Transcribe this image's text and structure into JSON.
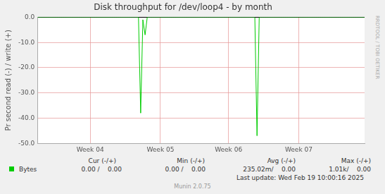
{
  "chart_data": {
    "type": "line",
    "title": "Disk throughput for /dev/loop4 - by month",
    "y_label": "Pr second read (-) / write (+)",
    "categories": [
      null,
      null,
      null,
      null,
      null,
      null,
      null,
      null,
      null,
      null,
      null,
      null,
      null,
      null,
      null,
      null,
      null,
      null,
      null,
      null,
      null,
      null,
      null,
      null,
      "Week 04",
      null,
      null,
      null,
      null,
      null,
      null,
      null,
      null,
      null,
      null,
      null,
      null,
      null,
      null,
      null,
      null,
      null,
      null,
      null,
      null,
      null,
      null,
      null,
      null,
      null,
      null,
      null,
      null,
      null,
      null,
      null,
      "Week 05",
      null,
      null,
      null,
      null,
      null,
      null,
      null,
      null,
      null,
      null,
      null,
      null,
      null,
      null,
      null,
      null,
      null,
      null,
      null,
      null,
      null,
      null,
      null,
      null,
      null,
      null,
      null,
      null,
      null,
      null,
      "Week 06",
      null,
      null,
      null,
      null,
      null,
      null,
      null,
      null,
      null,
      null,
      null,
      null,
      null,
      null,
      null,
      null,
      null,
      null,
      null,
      null,
      null,
      null,
      null,
      null,
      null,
      null,
      null,
      null,
      null,
      null,
      null,
      "Week 07",
      null,
      null,
      null,
      null,
      null,
      null,
      null,
      null,
      null,
      null,
      null,
      null,
      null,
      null,
      null,
      null,
      null,
      null,
      null,
      null,
      null,
      null,
      null,
      null,
      null,
      null,
      null,
      null,
      null,
      null
    ],
    "series": [
      {
        "name": "Bytes",
        "color": "#00cc00",
        "values": [
          0,
          0,
          0,
          0,
          0,
          0,
          0,
          0,
          0,
          0,
          0,
          0,
          0,
          0,
          0,
          0,
          0,
          0,
          0,
          0,
          0,
          0,
          0,
          0,
          0,
          0,
          0,
          0,
          0,
          0,
          0,
          0,
          0,
          0,
          0,
          0,
          0,
          0,
          0,
          0,
          0,
          0,
          0,
          0,
          0,
          0,
          0,
          -38,
          -1,
          -7,
          0,
          0,
          0,
          0,
          0,
          0,
          0,
          0,
          0,
          0,
          0,
          0,
          0,
          0,
          0,
          0,
          0,
          0,
          0,
          0,
          0,
          0,
          0,
          0,
          0,
          0,
          0,
          0,
          0,
          0,
          0,
          0,
          0,
          0,
          0,
          0,
          0,
          0,
          0,
          0,
          0,
          0,
          0,
          0,
          0,
          0,
          0,
          0,
          0,
          0,
          -47,
          0,
          0,
          0,
          0,
          0,
          0,
          0,
          0,
          0,
          0,
          0,
          0,
          0,
          0,
          0,
          0,
          0,
          0,
          0,
          0,
          0,
          0,
          0,
          0,
          0,
          0,
          0,
          0,
          0,
          0,
          0,
          0,
          0,
          0,
          0,
          0,
          0,
          0,
          0,
          0,
          0,
          0,
          0,
          0,
          0,
          0,
          0,
          0,
          0
        ]
      }
    ],
    "ylim": [
      -50,
      0
    ],
    "yticks": [
      {
        "value": -50,
        "label": "-50.0"
      },
      {
        "value": -40,
        "label": "-40.0"
      },
      {
        "value": -30,
        "label": "-30.0"
      },
      {
        "value": -20,
        "label": "-20.0"
      },
      {
        "value": -10,
        "label": "-10.0"
      },
      {
        "value": 0,
        "label": "0.0"
      }
    ],
    "grid": true,
    "legend": "bottom",
    "legend_table": {
      "headers": [
        "Cur (-/+)",
        "Min (-/+)",
        "Avg (-/+)",
        "Max (-/+)"
      ],
      "rows": [
        {
          "name": "Bytes",
          "values": [
            "0.00 /    0.00",
            "0.00 /    0.00",
            "235.02m/    0.00",
            "1.01k/    0.00"
          ]
        }
      ]
    },
    "annotations": [
      "RRDTOOL / TOBI OETIKER",
      "Last update: Wed Feb 19 10:00:16 2025",
      "Munin 2.0.75"
    ]
  }
}
